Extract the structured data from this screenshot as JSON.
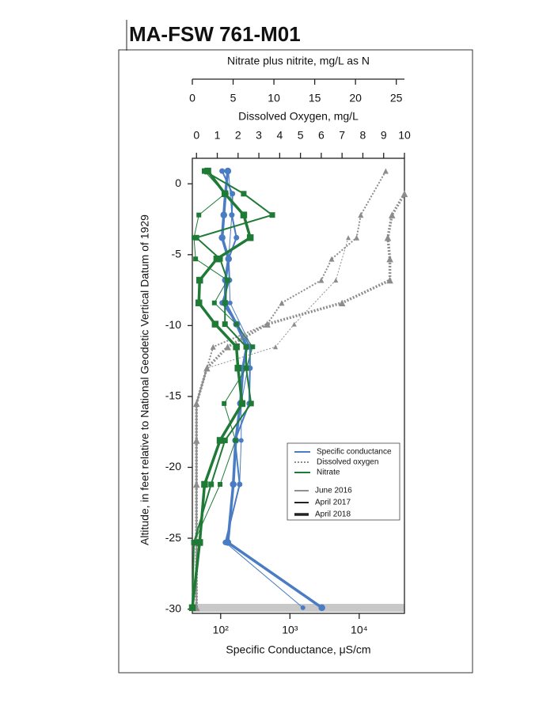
{
  "chart_data": {
    "type": "profile",
    "title": "MA-FSW  761-M01",
    "ylabel": "Altitude, in feet relative to National Geodetic Vertical Datum of 1929",
    "ylim": [
      -30.3,
      1.8
    ],
    "yticks": [
      0,
      -5,
      -10,
      -15,
      -20,
      -25,
      -30
    ],
    "axes": [
      {
        "position": "bottom",
        "label": "Specific Conductance, μS/cm",
        "log": true,
        "xlim": [
          39,
          45000
        ],
        "xticks": [
          {
            "value": 100,
            "label": "10²"
          },
          {
            "value": 1000,
            "label": "10³"
          },
          {
            "value": 10000,
            "label": "10⁴"
          }
        ]
      },
      {
        "position": "top-outer",
        "label": "Nitrate plus nitrite, mg/L as N",
        "log": false,
        "xlim": [
          0,
          26
        ],
        "xticks": [
          0,
          5,
          10,
          15,
          20,
          25
        ]
      },
      {
        "position": "top-inner",
        "label": "Dissolved Oxygen, mg/L",
        "log": false,
        "xlim": [
          -0.2,
          10
        ],
        "xticks": [
          0,
          1,
          2,
          3,
          4,
          5,
          6,
          7,
          8,
          9,
          10
        ]
      }
    ],
    "legend": {
      "parameters": [
        {
          "name": "Specific conductance",
          "color": "#4a7cc4",
          "dash": "none"
        },
        {
          "name": "Dissolved oxygen",
          "color": "#8c8c8c",
          "dash": "2,2"
        },
        {
          "name": "Nitrate",
          "color": "#1f7a36",
          "dash": "none"
        }
      ],
      "dates": [
        {
          "name": "June 2016",
          "width": 1
        },
        {
          "name": "April 2017",
          "width": 2
        },
        {
          "name": "April 2018",
          "width": 3.5
        }
      ]
    },
    "series": [
      {
        "axis": 0,
        "parameter": 0,
        "date": 0,
        "marker": "circle",
        "y": [
          0.9,
          -2.2,
          -5.3,
          -8.4,
          -11.5,
          -15.5,
          -18.1,
          -21.2,
          -25.3,
          -29.9
        ],
        "values": [
          130,
          145,
          130,
          137,
          279,
          198,
          198,
          188,
          117,
          1540
        ]
      },
      {
        "axis": 0,
        "parameter": 0,
        "date": 1,
        "marker": "circle",
        "y": [
          0.9,
          -0.7,
          -2.2,
          -3.8,
          -5.3,
          -6.8,
          -8.4,
          -9.9,
          -11.5,
          -13,
          -15.5,
          -18.1,
          -21.2,
          -25.3
        ],
        "values": [
          105,
          148,
          145,
          169,
          130,
          134,
          105,
          174,
          265,
          265,
          258,
          161,
          188,
          117
        ]
      },
      {
        "axis": 0,
        "parameter": 0,
        "date": 2,
        "marker": "circle",
        "y": [
          0.9,
          -0.7,
          -2.2,
          -3.8,
          -5.3,
          -6.8,
          -8.4,
          -9.9,
          -11.5,
          -13,
          -15.5,
          -18.1,
          -21.2,
          -25.3,
          -29.9
        ],
        "values": [
          127,
          117,
          111,
          105,
          130,
          117,
          117,
          169,
          238,
          209,
          193,
          165,
          152,
          127,
          2890
        ]
      },
      {
        "axis": 2,
        "parameter": 1,
        "date": 0,
        "marker": "triangle",
        "y": [
          -3.8,
          -6.8,
          -9.9,
          -11.5,
          -13,
          -15.5,
          -18.1,
          -21.2,
          -25.3,
          -29.9
        ],
        "values": [
          7.3,
          6.7,
          4.7,
          3.8,
          0.5,
          0,
          0,
          0,
          0,
          0
        ]
      },
      {
        "axis": 2,
        "parameter": 1,
        "date": 1,
        "marker": "triangle",
        "y": [
          0.9,
          -2.2,
          -3.8,
          -5.3,
          -6.8,
          -8.4,
          -9.9,
          -11.5,
          -13,
          -15.5,
          -18.1,
          -21.2,
          -25.3,
          -29.9
        ],
        "values": [
          9.1,
          7.9,
          7.7,
          6.5,
          6,
          4.1,
          3.4,
          0.8,
          0.5,
          0,
          0,
          0,
          0,
          0
        ]
      },
      {
        "axis": 2,
        "parameter": 1,
        "date": 2,
        "marker": "triangle",
        "y": [
          -0.7,
          -2.2,
          -3.8,
          -5.3,
          -6.8,
          -8.4,
          -9.9,
          -11.5,
          -13,
          -15.5,
          -18.1,
          -21.2,
          -25.3,
          -29.9
        ],
        "values": [
          10,
          9.4,
          9.2,
          9.3,
          9.3,
          7,
          3.4,
          1.5,
          0.5,
          0,
          0,
          0,
          0,
          0
        ]
      },
      {
        "axis": 1,
        "parameter": 2,
        "date": 0,
        "marker": "square",
        "y": [
          0.9,
          -0.7,
          -2.2,
          -3.8,
          -5.3,
          -6.8,
          -8.4,
          -9.9,
          -11.5,
          -13,
          -15.5,
          -18.1,
          -21.2,
          -25.3,
          -29.9
        ],
        "values": [
          1.5,
          4,
          0.8,
          0.2,
          0.4,
          4.3,
          2.7,
          5.4,
          7.4,
          6.6,
          3.9,
          5.3,
          3.4,
          0.2,
          0
        ]
      },
      {
        "axis": 1,
        "parameter": 2,
        "date": 1,
        "marker": "square",
        "y": [
          0.9,
          -0.7,
          -2.2,
          -3.8,
          -5.3,
          -6.8,
          -8.4,
          -9.9,
          -11.5,
          -13,
          -15.5,
          -18.1,
          -21.2,
          -25.3,
          -29.9
        ],
        "values": [
          1.5,
          6.3,
          9.8,
          0.5,
          3.4,
          4.3,
          4,
          4,
          6.6,
          6.6,
          7.2,
          4,
          2.3,
          0.2,
          0
        ]
      },
      {
        "axis": 1,
        "parameter": 2,
        "date": 2,
        "marker": "square",
        "y": [
          0.9,
          -0.7,
          -2.2,
          -3.8,
          -5.3,
          -6.8,
          -8.4,
          -9.9,
          -11.5,
          -13,
          -15.5,
          -18.1,
          -21.2,
          -25.3,
          -29.9
        ],
        "values": [
          1.9,
          4,
          6.3,
          7.1,
          3,
          0.9,
          0.8,
          2.8,
          5.4,
          5.6,
          6.1,
          3.4,
          1.5,
          0.9,
          0
        ]
      }
    ]
  }
}
